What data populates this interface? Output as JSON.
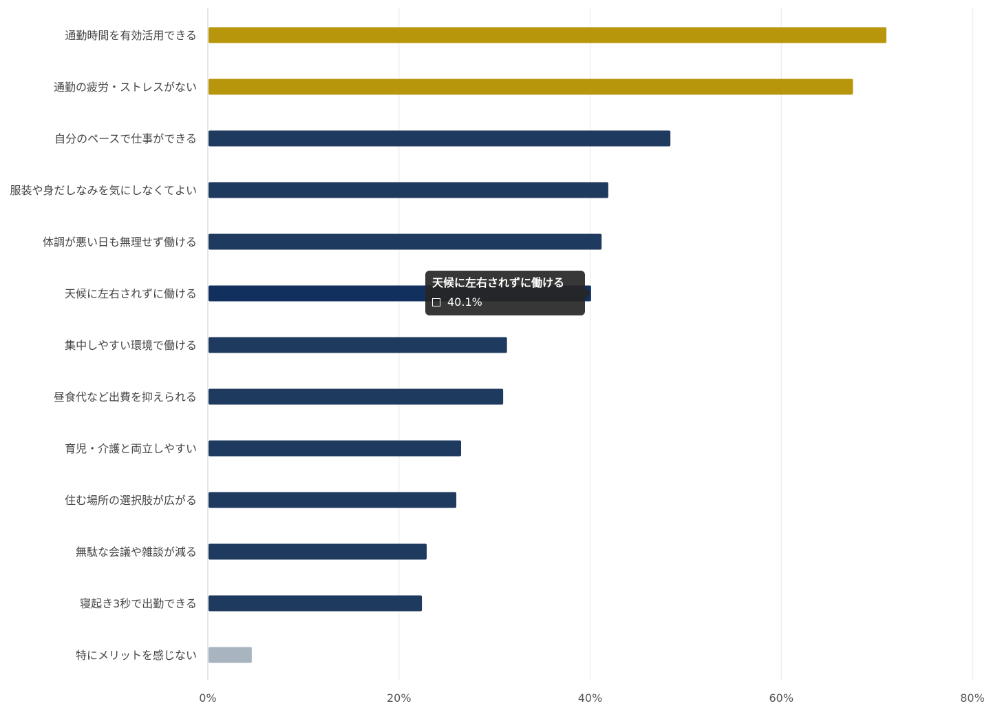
{
  "chart_data": {
    "type": "bar",
    "orientation": "horizontal",
    "categories": [
      "通勤時間を有効活用できる",
      "通勤の疲労・ストレスがない",
      "自分のペースで仕事ができる",
      "服装や身だしなみを気にしなくてよい",
      "体調が悪い日も無理せず働ける",
      "天候に左右されずに働ける",
      "集中しやすい環境で働ける",
      "昼食代など出費を抑えられる",
      "育児・介護と両立しやすい",
      "住む場所の選択肢が広がる",
      "無駄な会議や雑談が減る",
      "寝起き3秒で出勤できる",
      "特にメリットを感じない"
    ],
    "values": [
      71.0,
      67.5,
      48.4,
      41.9,
      41.2,
      40.1,
      31.3,
      30.9,
      26.5,
      26.0,
      22.9,
      22.4,
      4.6
    ],
    "bar_colors": [
      "#b8960c",
      "#b8960c",
      "#1f3a5f",
      "#1f3a5f",
      "#1f3a5f",
      "#12305e",
      "#1f3a5f",
      "#1f3a5f",
      "#1f3a5f",
      "#1f3a5f",
      "#1f3a5f",
      "#1f3a5f",
      "#a8b4bf"
    ],
    "xlim": [
      0,
      80
    ],
    "x_ticks": [
      0,
      20,
      40,
      60,
      80
    ],
    "x_tick_labels": [
      "0%",
      "20%",
      "40%",
      "60%",
      "80%"
    ],
    "grid": true,
    "tooltip": {
      "category_index": 5,
      "title": "天候に左右されずに働ける",
      "value_text": "40.1%"
    }
  }
}
